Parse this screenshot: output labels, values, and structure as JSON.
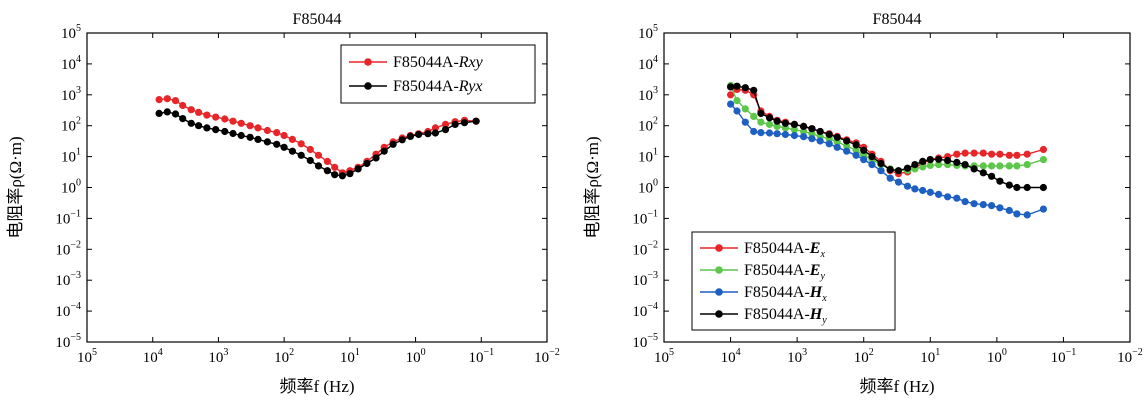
{
  "chart_data": [
    {
      "type": "line",
      "title": "F85044",
      "xlabel": "频率f (Hz)",
      "ylabel": "电阻率ρ(Ω·m)",
      "x_scale": "log",
      "y_scale": "log",
      "x_reversed": true,
      "xlim": [
        100000,
        0.01
      ],
      "ylim": [
        1e-05,
        100000
      ],
      "x_ticks": [
        100000,
        10000,
        1000,
        100,
        10,
        1,
        0.1,
        0.01
      ],
      "x_tick_labels": [
        "10^5",
        "10^4",
        "10^3",
        "10^2",
        "10^1",
        "10^0",
        "10^-1",
        "10^-2"
      ],
      "y_ticks": [
        1e-05,
        0.0001,
        0.001,
        0.01,
        0.1,
        1,
        10,
        100,
        1000,
        10000,
        100000
      ],
      "y_tick_labels": [
        "10^-5",
        "10^-4",
        "10^-3",
        "10^-2",
        "10^-1",
        "10^0",
        "10^1",
        "10^2",
        "10^3",
        "10^4",
        "10^5"
      ],
      "grid": false,
      "legend": "top-right",
      "series": [
        {
          "name": "F85044A-Rxy",
          "legend_prefix": "F85044A-",
          "legend_suffix": "Rxy",
          "color": "#e8262a",
          "x": [
            8000,
            6000,
            4500,
            3500,
            2600,
            2000,
            1500,
            1100,
            800,
            600,
            450,
            330,
            250,
            180,
            130,
            100,
            75,
            55,
            40,
            30,
            22,
            17,
            13,
            10,
            7.5,
            5.5,
            4,
            3,
            2.2,
            1.6,
            1.2,
            0.9,
            0.65,
            0.5,
            0.35,
            0.25,
            0.18,
            0.12
          ],
          "y": [
            700,
            750,
            650,
            450,
            330,
            270,
            220,
            190,
            165,
            140,
            120,
            100,
            85,
            70,
            60,
            48,
            36,
            26,
            17,
            11,
            7,
            4.5,
            3,
            3.5,
            4.5,
            7,
            12,
            20,
            30,
            40,
            48,
            55,
            65,
            85,
            110,
            135,
            150,
            140
          ]
        },
        {
          "name": "F85044A-Ryx",
          "legend_prefix": "F85044A-",
          "legend_suffix": "Ryx",
          "color": "#000000",
          "x": [
            8000,
            6000,
            4500,
            3500,
            2600,
            2000,
            1500,
            1100,
            800,
            600,
            450,
            330,
            250,
            180,
            130,
            100,
            75,
            55,
            40,
            30,
            22,
            17,
            13,
            10,
            7.5,
            5.5,
            4,
            3,
            2.2,
            1.6,
            1.2,
            0.9,
            0.65,
            0.5,
            0.35,
            0.25,
            0.18,
            0.12
          ],
          "y": [
            250,
            280,
            240,
            170,
            120,
            100,
            85,
            75,
            65,
            56,
            48,
            42,
            36,
            30,
            25,
            20,
            15,
            11,
            7.5,
            5,
            3.5,
            2.6,
            2.4,
            2.8,
            4,
            6,
            9,
            15,
            25,
            35,
            45,
            52,
            55,
            58,
            75,
            110,
            125,
            140
          ]
        }
      ]
    },
    {
      "type": "line",
      "title": "F85044",
      "xlabel": "频率f (Hz)",
      "ylabel": "电阻率ρ(Ω·m)",
      "x_scale": "log",
      "y_scale": "log",
      "x_reversed": true,
      "xlim": [
        100000,
        0.01
      ],
      "ylim": [
        1e-05,
        100000
      ],
      "x_ticks": [
        100000,
        10000,
        1000,
        100,
        10,
        1,
        0.1,
        0.01
      ],
      "x_tick_labels": [
        "10^5",
        "10^4",
        "10^3",
        "10^2",
        "10^1",
        "10^0",
        "10^-1",
        "10^-2"
      ],
      "y_ticks": [
        1e-05,
        0.0001,
        0.001,
        0.01,
        0.1,
        1,
        10,
        100,
        1000,
        10000,
        100000
      ],
      "y_tick_labels": [
        "10^-5",
        "10^-4",
        "10^-3",
        "10^-2",
        "10^-1",
        "10^0",
        "10^1",
        "10^2",
        "10^3",
        "10^4",
        "10^5"
      ],
      "grid": false,
      "legend": "bottom-left",
      "series": [
        {
          "name": "F85044A-Ex",
          "legend_prefix": "F85044A-",
          "legend_letter": "E",
          "legend_sub": "x",
          "color": "#e8262a",
          "x": [
            10000,
            8000,
            6000,
            4500,
            3500,
            2600,
            2000,
            1500,
            1100,
            800,
            600,
            450,
            330,
            250,
            180,
            130,
            100,
            75,
            55,
            40,
            30,
            22,
            17,
            13,
            10,
            7.5,
            5.5,
            4,
            3,
            2.2,
            1.6,
            1.2,
            0.9,
            0.65,
            0.5,
            0.35,
            0.2
          ],
          "y": [
            1000,
            1500,
            1400,
            1000,
            300,
            200,
            150,
            130,
            110,
            95,
            80,
            65,
            55,
            45,
            35,
            28,
            20,
            12,
            7,
            3.5,
            2.8,
            3.2,
            4.5,
            6,
            8,
            9,
            10,
            12,
            13,
            13,
            13,
            12,
            12,
            11,
            11,
            12,
            17
          ]
        },
        {
          "name": "F85044A-Ey",
          "legend_prefix": "F85044A-",
          "legend_letter": "E",
          "legend_sub": "y",
          "color": "#5cc74a",
          "x": [
            10000,
            8000,
            6000,
            4500,
            3500,
            2600,
            2000,
            1500,
            1100,
            800,
            600,
            450,
            330,
            250,
            180,
            130,
            100,
            75,
            55,
            40,
            30,
            22,
            17,
            13,
            10,
            7.5,
            5.5,
            4,
            3,
            2.2,
            1.6,
            1.2,
            0.9,
            0.65,
            0.5,
            0.35,
            0.2
          ],
          "y": [
            2000,
            650,
            350,
            200,
            130,
            110,
            95,
            85,
            75,
            65,
            55,
            45,
            38,
            30,
            22,
            16,
            11,
            8,
            5.5,
            4,
            3.5,
            3.6,
            4,
            4.6,
            5.2,
            5.5,
            5.5,
            5.2,
            5,
            5,
            5,
            5,
            5,
            5,
            5,
            5.5,
            8
          ]
        },
        {
          "name": "F85044A-Hx",
          "legend_prefix": "F85044A-",
          "legend_letter": "H",
          "legend_sub": "x",
          "color": "#1e5fc2",
          "x": [
            10000,
            8000,
            6000,
            4500,
            3500,
            2600,
            2000,
            1500,
            1100,
            800,
            600,
            450,
            330,
            250,
            180,
            130,
            100,
            75,
            55,
            40,
            30,
            22,
            17,
            13,
            10,
            7.5,
            5.5,
            4,
            3,
            2.2,
            1.6,
            1.2,
            0.9,
            0.65,
            0.5,
            0.35,
            0.2
          ],
          "y": [
            500,
            300,
            130,
            65,
            60,
            58,
            55,
            52,
            48,
            44,
            38,
            32,
            26,
            20,
            15,
            11,
            8,
            5.5,
            3.5,
            2,
            1.5,
            1.1,
            0.9,
            0.8,
            0.7,
            0.6,
            0.5,
            0.45,
            0.35,
            0.3,
            0.28,
            0.26,
            0.22,
            0.18,
            0.14,
            0.13,
            0.2
          ]
        },
        {
          "name": "F85044A-Hy",
          "legend_prefix": "F85044A-",
          "legend_letter": "H",
          "legend_sub": "y",
          "color": "#000000",
          "x": [
            10000,
            8000,
            6000,
            4500,
            3500,
            2600,
            2000,
            1500,
            1100,
            800,
            600,
            450,
            330,
            250,
            180,
            130,
            100,
            75,
            55,
            40,
            30,
            22,
            17,
            13,
            10,
            7.5,
            5.5,
            4,
            3,
            2.2,
            1.6,
            1.2,
            0.9,
            0.65,
            0.5,
            0.35,
            0.2
          ],
          "y": [
            1800,
            1900,
            1700,
            1400,
            250,
            180,
            140,
            120,
            110,
            95,
            80,
            65,
            52,
            42,
            32,
            24,
            16,
            10,
            6,
            3.8,
            3.5,
            4.2,
            5.5,
            7,
            8,
            8.2,
            7.5,
            6.5,
            5.5,
            4,
            3,
            2.3,
            1.6,
            1.2,
            1,
            1,
            1
          ]
        }
      ]
    }
  ]
}
